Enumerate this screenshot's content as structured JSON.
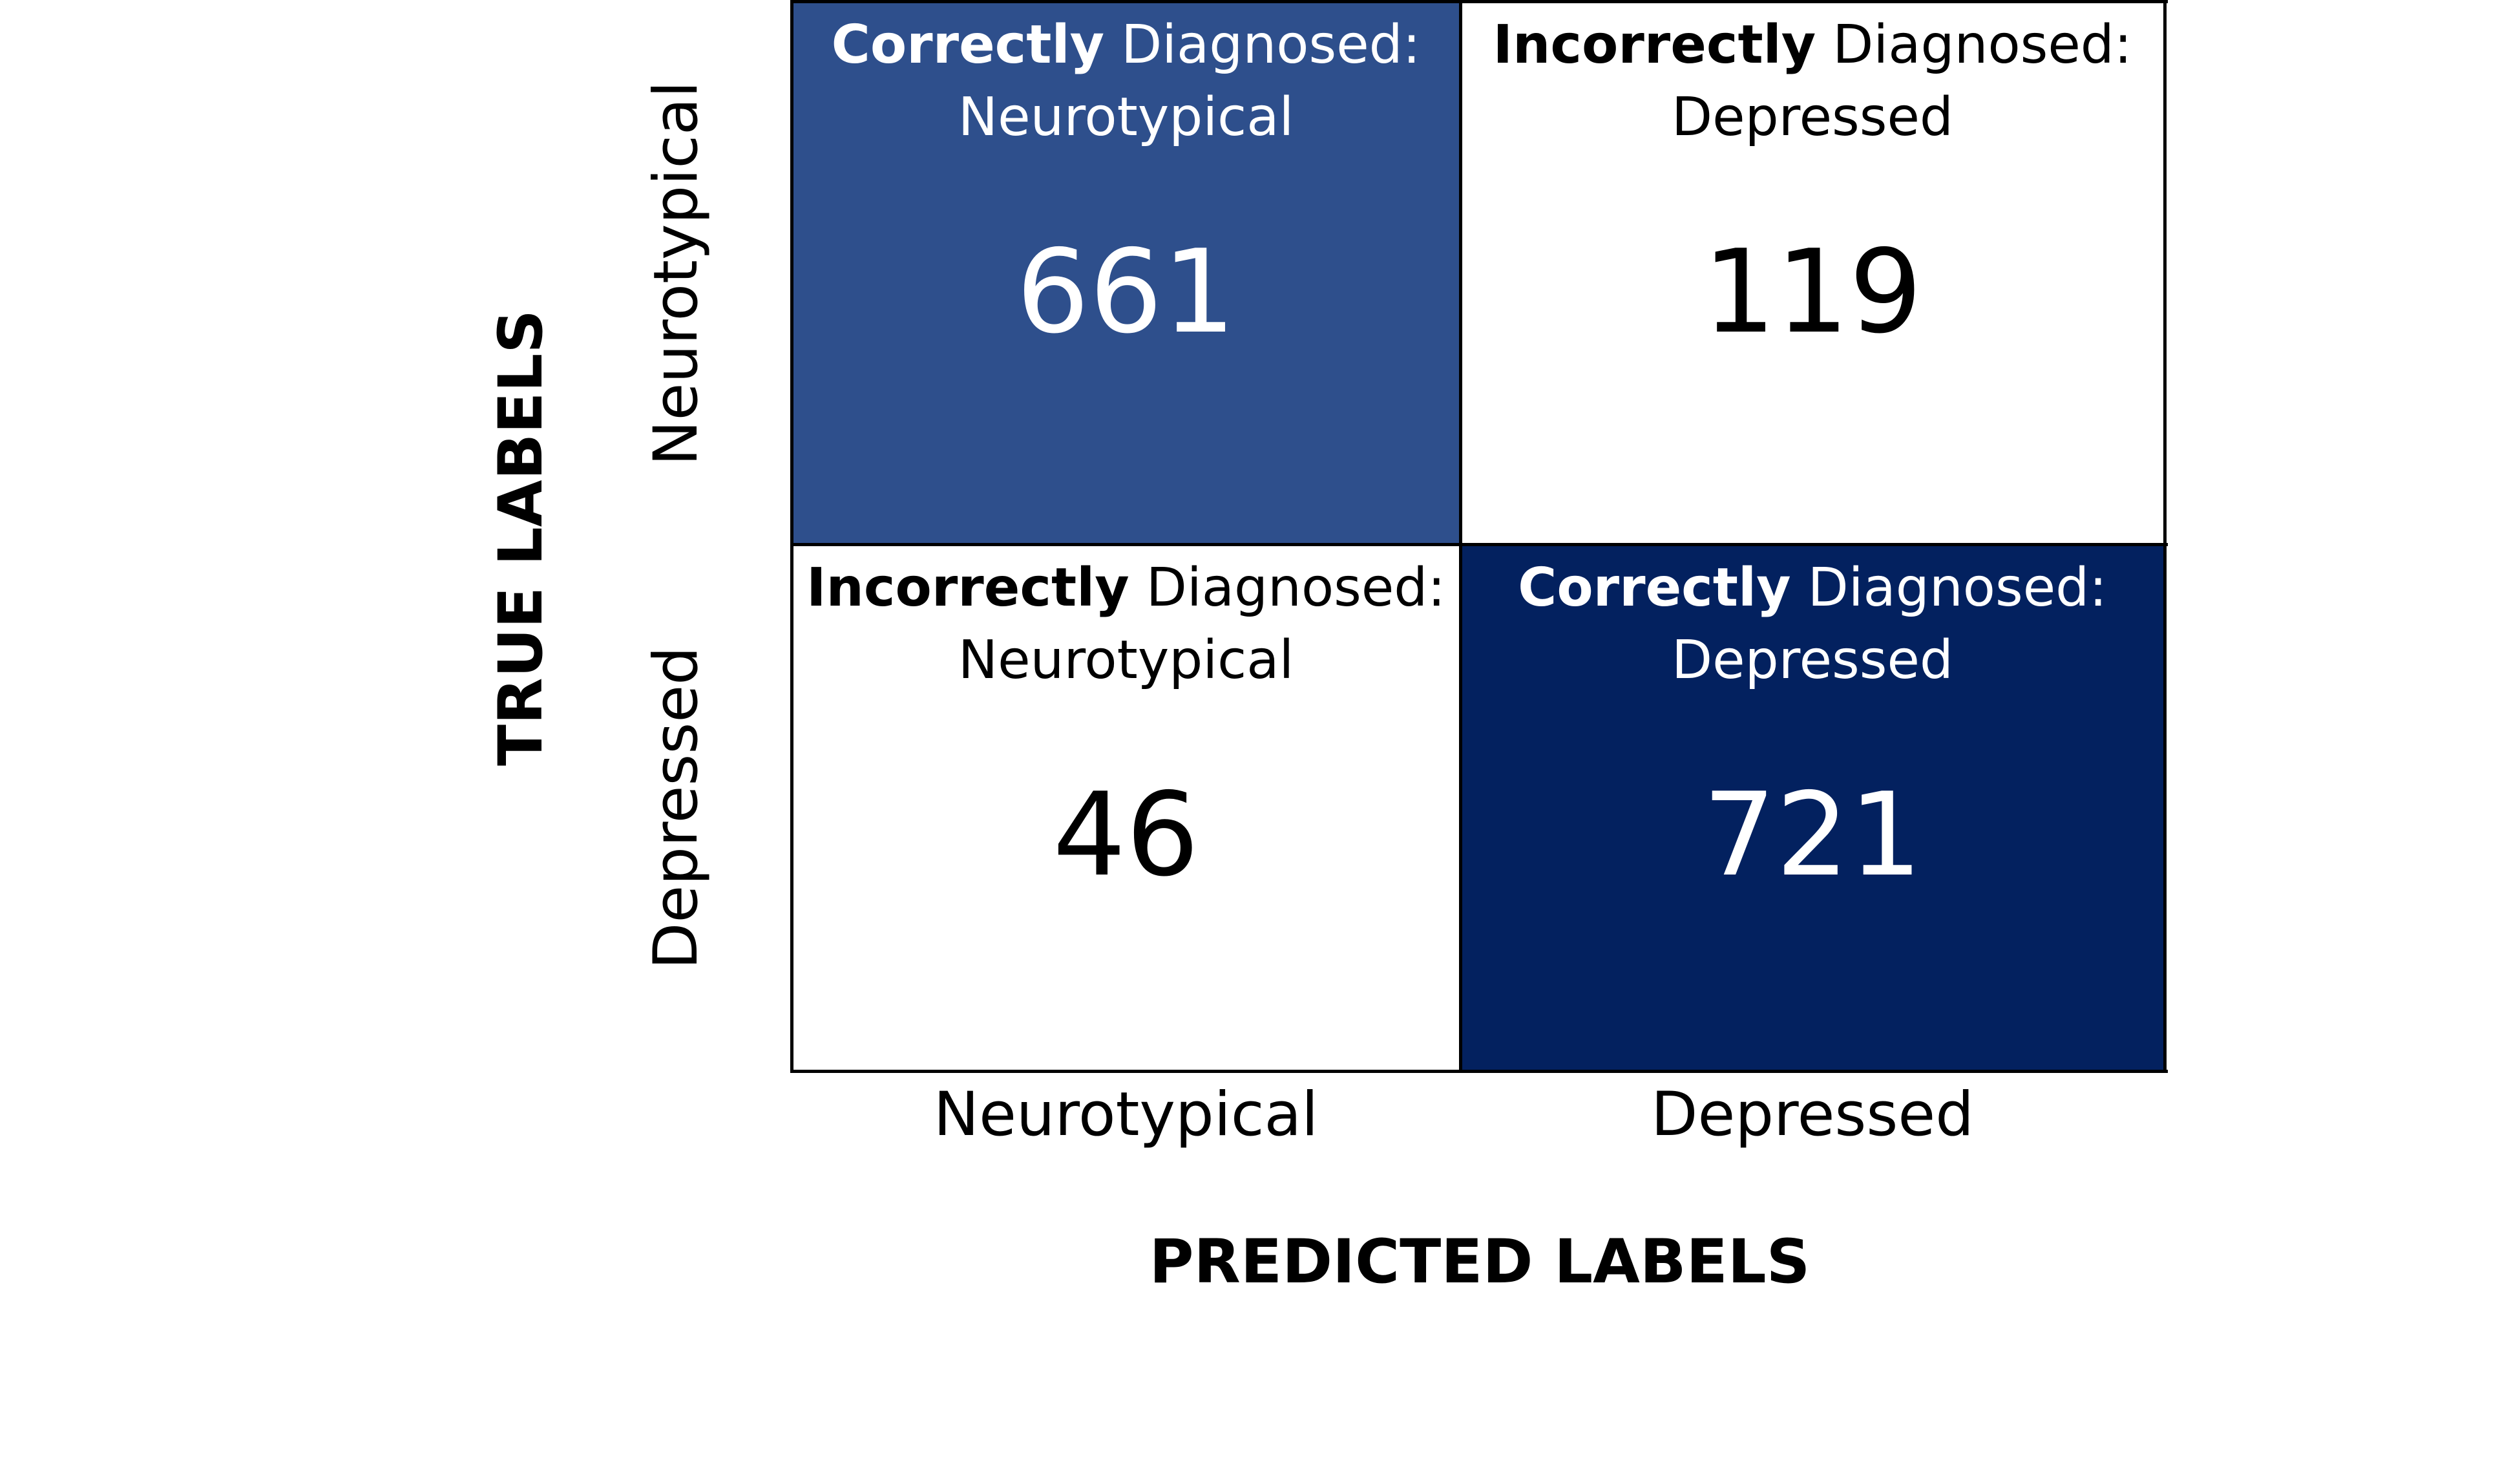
{
  "chart_data": {
    "type": "heatmap",
    "xlabel": "PREDICTED LABELS",
    "ylabel": "TRUE LABELS",
    "x_categories": [
      "Neurotypical",
      "Depressed"
    ],
    "y_categories": [
      "Neurotypical",
      "Depressed"
    ],
    "values": [
      [
        661,
        119
      ],
      [
        46,
        721
      ]
    ],
    "cells": [
      {
        "emphasis": "Correctly",
        "text": " Diagnosed:",
        "line2": "Neurotypical",
        "value": "661",
        "color": "#2e4f8c"
      },
      {
        "emphasis": "Incorrectly",
        "text": " Diagnosed:",
        "line2": "Depressed",
        "value": "119",
        "color": "#ffffff"
      },
      {
        "emphasis": "Incorrectly",
        "text": " Diagnosed:",
        "line2": "Neurotypical",
        "value": "46",
        "color": "#ffffff"
      },
      {
        "emphasis": "Correctly",
        "text": " Diagnosed:",
        "line2": "Depressed",
        "value": "721",
        "color": "#03215f"
      }
    ],
    "colors": {
      "high": "#03215f",
      "mid": "#2e4f8c",
      "low": "#ffffff",
      "border": "#000000"
    },
    "grid": true,
    "legend": "none"
  }
}
